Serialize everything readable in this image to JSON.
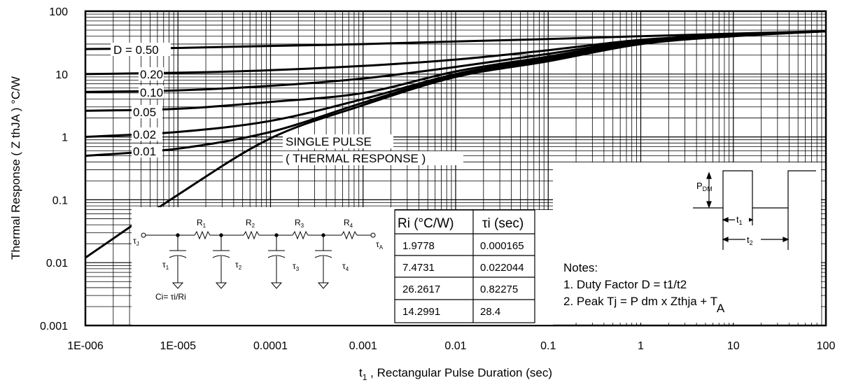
{
  "chart_data": {
    "type": "line",
    "x_scale": "log",
    "y_scale": "log",
    "xlim": [
      1e-06,
      100
    ],
    "ylim": [
      0.001,
      100
    ],
    "grid": true,
    "xlabel": {
      "main": "t",
      "sub": "1",
      "rest": " , Rectangular Pulse Duration (sec)"
    },
    "ylabel": "Thermal Response ( Z thJA ) °C/W",
    "x_ticks": [
      {
        "value": 1e-06,
        "label": "1E-006"
      },
      {
        "value": 1e-05,
        "label": "1E-005"
      },
      {
        "value": 0.0001,
        "label": "0.0001"
      },
      {
        "value": 0.001,
        "label": "0.001"
      },
      {
        "value": 0.01,
        "label": "0.01"
      },
      {
        "value": 0.1,
        "label": "0.1"
      },
      {
        "value": 1,
        "label": "1"
      },
      {
        "value": 10,
        "label": "10"
      },
      {
        "value": 100,
        "label": "100"
      }
    ],
    "y_ticks": [
      {
        "value": 0.001,
        "label": "0.001"
      },
      {
        "value": 0.01,
        "label": "0.01"
      },
      {
        "value": 0.1,
        "label": "0.1"
      },
      {
        "value": 1,
        "label": "1"
      },
      {
        "value": 10,
        "label": "10"
      },
      {
        "value": 100,
        "label": "100"
      }
    ],
    "series": [
      {
        "name": "D = 0.50",
        "x": [
          1e-06,
          1e-05,
          0.0001,
          0.001,
          0.01,
          0.1,
          1,
          10,
          100
        ],
        "y": [
          25,
          26,
          28,
          30,
          33,
          36,
          40,
          44,
          48
        ]
      },
      {
        "name": "0.20",
        "x": [
          1e-06,
          1e-05,
          0.0001,
          0.001,
          0.01,
          0.1,
          1,
          10,
          100
        ],
        "y": [
          10,
          10.5,
          11.5,
          13.5,
          17,
          24,
          35,
          42,
          48
        ]
      },
      {
        "name": "0.10",
        "x": [
          1e-06,
          1e-05,
          0.0001,
          0.001,
          0.01,
          0.1,
          1,
          10,
          100
        ],
        "y": [
          5.2,
          5.5,
          6.5,
          8.5,
          13,
          21,
          34,
          42,
          48
        ]
      },
      {
        "name": "0.05",
        "x": [
          1e-06,
          1e-05,
          0.0001,
          0.001,
          0.01,
          0.1,
          1,
          10,
          100
        ],
        "y": [
          2.6,
          2.8,
          3.6,
          5,
          11,
          19,
          33,
          42,
          48
        ]
      },
      {
        "name": "0.02",
        "x": [
          1e-06,
          1e-05,
          0.0001,
          0.001,
          0.01,
          0.1,
          1,
          10,
          100
        ],
        "y": [
          1.0,
          1.2,
          1.8,
          4,
          10,
          18,
          32,
          41,
          48
        ]
      },
      {
        "name": "0.01",
        "x": [
          1e-06,
          1e-05,
          0.0001,
          0.001,
          0.01,
          0.1,
          1,
          10,
          100
        ],
        "y": [
          0.5,
          0.65,
          1.2,
          3.5,
          9.5,
          17,
          31,
          41,
          48
        ]
      },
      {
        "name": "SINGLE PULSE",
        "x": [
          1e-06,
          1e-05,
          0.0001,
          0.001,
          0.01,
          0.1,
          1,
          10,
          100
        ],
        "y": [
          0.012,
          0.12,
          0.95,
          3.2,
          9,
          16,
          30,
          40,
          48
        ]
      }
    ],
    "annotations": [
      "SINGLE PULSE",
      "( THERMAL RESPONSE )"
    ]
  },
  "circuit": {
    "r": [
      "R",
      "R",
      "R",
      "R"
    ],
    "r_sub": [
      "1",
      "2",
      "3",
      "4"
    ],
    "tau": "τ",
    "tau_sub": [
      "1",
      "2",
      "3",
      "4"
    ],
    "tau_j_sub": "J",
    "tau_a_sub": "A",
    "ci_formula": "Ci= τi/Ri"
  },
  "table": {
    "headers": [
      "Ri (°C/W)",
      "τi (sec)"
    ],
    "rows": [
      [
        "1.9778",
        "0.000165"
      ],
      [
        "7.4731",
        "0.022044"
      ],
      [
        "26.2617",
        "0.82275"
      ],
      [
        "14.2991",
        "28.4"
      ]
    ]
  },
  "waveform": {
    "p_label": "P",
    "p_sub": "DM",
    "t1_label": "t",
    "t1_sub": "1",
    "t2_label": "t",
    "t2_sub": "2"
  },
  "notes": {
    "title": "Notes:",
    "line1": "1. Duty Factor D = t1/t2",
    "line2_main": "2. Peak Tj = P dm x Zthja + T",
    "line2_sub": "A"
  }
}
